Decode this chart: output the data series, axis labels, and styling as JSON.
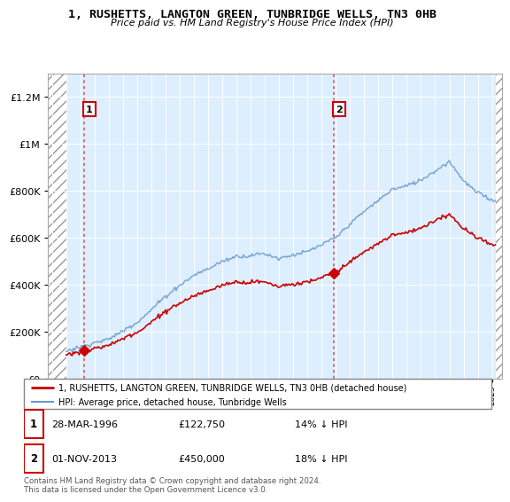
{
  "title": "1, RUSHETTS, LANGTON GREEN, TUNBRIDGE WELLS, TN3 0HB",
  "subtitle": "Price paid vs. HM Land Registry's House Price Index (HPI)",
  "legend_line1": "1, RUSHETTS, LANGTON GREEN, TUNBRIDGE WELLS, TN3 0HB (detached house)",
  "legend_line2": "HPI: Average price, detached house, Tunbridge Wells",
  "footer": "Contains HM Land Registry data © Crown copyright and database right 2024.\nThis data is licensed under the Open Government Licence v3.0.",
  "sale1_date": "28-MAR-1996",
  "sale1_price": 122750,
  "sale1_hpi": "14% ↓ HPI",
  "sale2_date": "01-NOV-2013",
  "sale2_price": 450000,
  "sale2_hpi": "18% ↓ HPI",
  "red_color": "#cc0000",
  "blue_color": "#6699cc",
  "dashed_color": "#dd4444",
  "bg_plot": "#ddeeff",
  "ylim": [
    0,
    1300000
  ],
  "yticks": [
    0,
    200000,
    400000,
    600000,
    800000,
    1000000,
    1200000
  ],
  "xlim_start": 1993.7,
  "xlim_end": 2025.7,
  "t1": 1996.25,
  "t2": 2013.84,
  "price1": 122750,
  "price2": 450000
}
